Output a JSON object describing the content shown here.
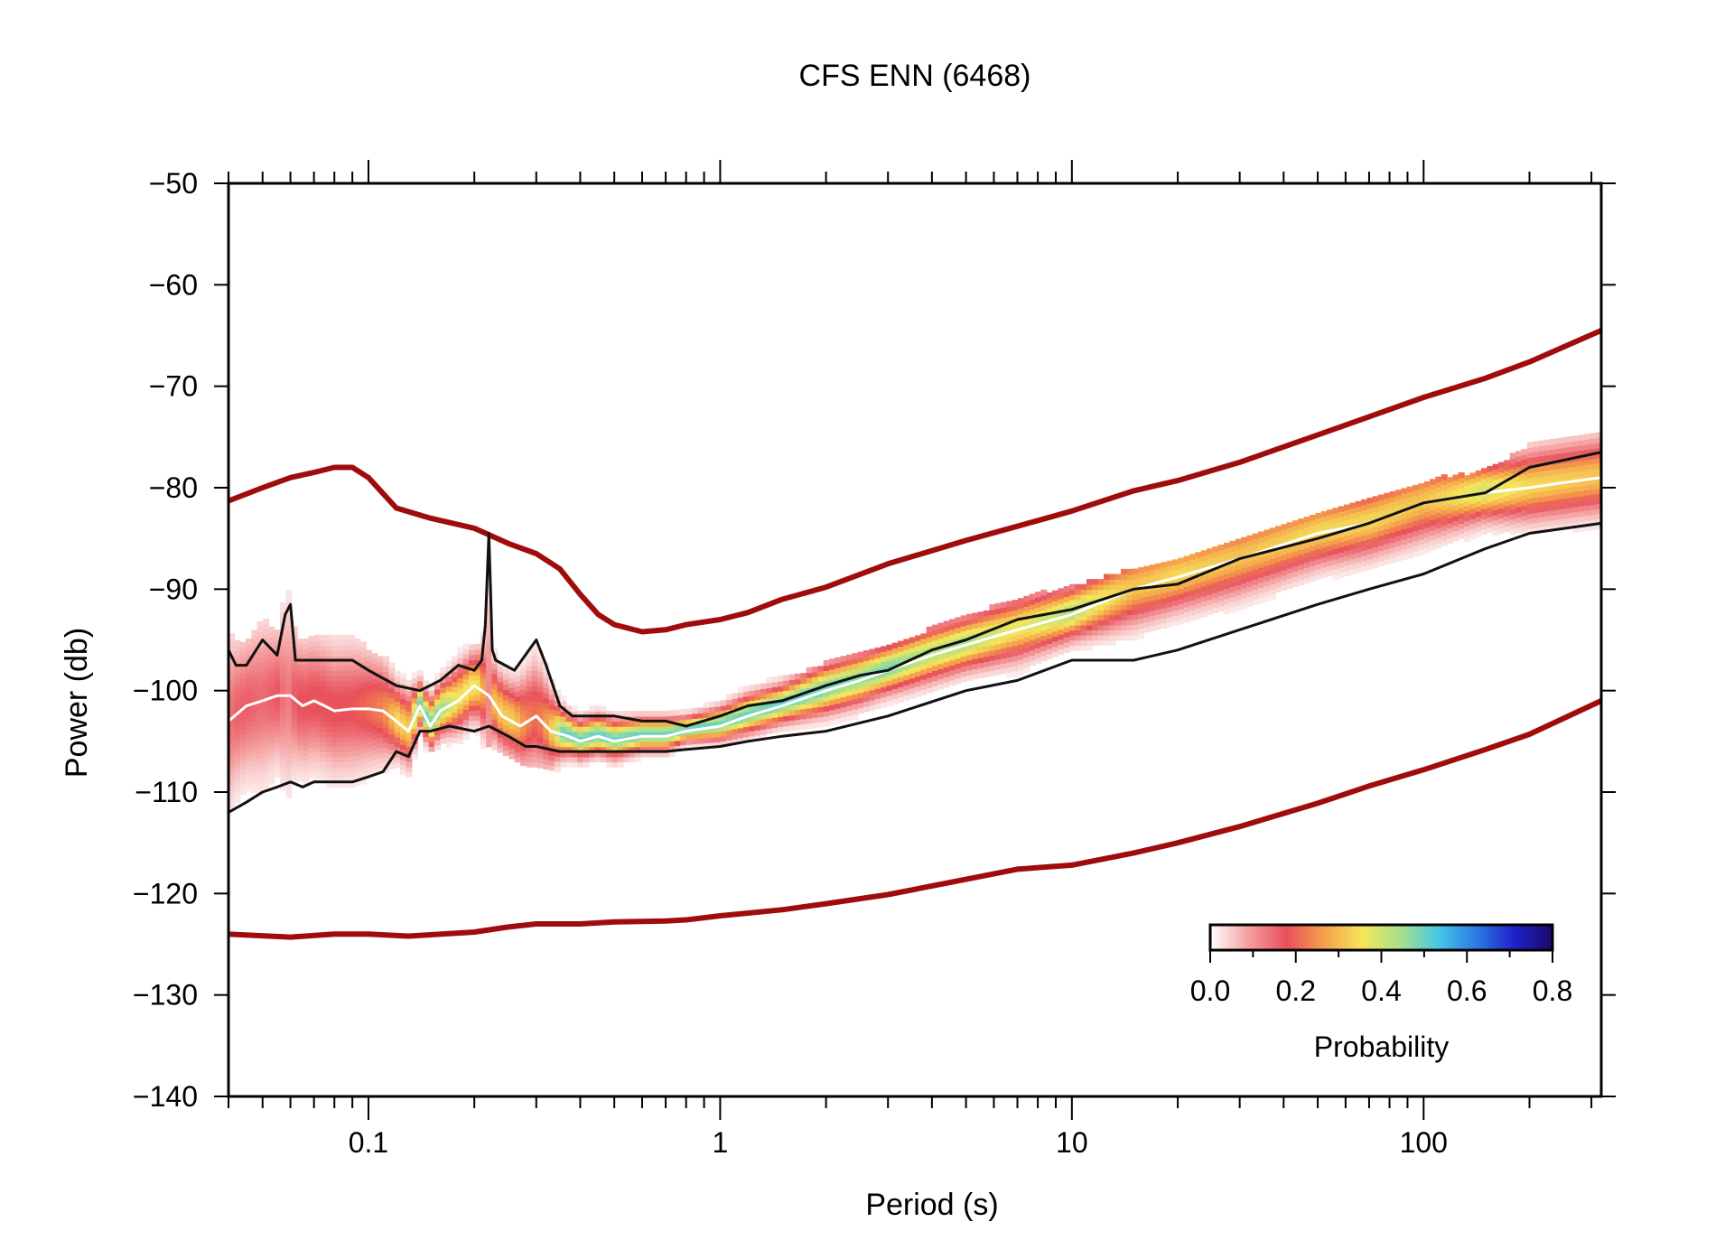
{
  "chart_data": {
    "type": "line",
    "title": "CFS ENN (6468)",
    "xlabel": "Period (s)",
    "ylabel": "Power (db)",
    "x_scale": "log",
    "xlim": [
      0.04,
      320
    ],
    "ylim": [
      -140,
      -50
    ],
    "x_tick_labels": [
      "0.1",
      "1",
      "10",
      "100"
    ],
    "x_tick_values": [
      0.1,
      1,
      10,
      100
    ],
    "y_tick_labels": [
      "−50",
      "−60",
      "−70",
      "−80",
      "−90",
      "−100",
      "−110",
      "−120",
      "−130",
      "−140"
    ],
    "y_tick_values": [
      -50,
      -60,
      -70,
      -80,
      -90,
      -100,
      -110,
      -120,
      -130,
      -140
    ],
    "grid": false,
    "colorbar": {
      "label": "Probability",
      "tick_labels": [
        "0.0",
        "0.2",
        "0.4",
        "0.6",
        "0.8"
      ],
      "range": [
        0,
        0.8
      ],
      "placement": "bottom-right",
      "colors": [
        "#ffffff",
        "#f4a0a0",
        "#e8505a",
        "#f5a04a",
        "#f5e65a",
        "#a8e08c",
        "#46c8e6",
        "#2a7ae6",
        "#2020c8",
        "#1a0a6e"
      ]
    },
    "series": [
      {
        "role": "NHNM",
        "color": "#a00c0c",
        "x": [
          0.04,
          0.05,
          0.06,
          0.07,
          0.08,
          0.09,
          0.1,
          0.12,
          0.15,
          0.2,
          0.25,
          0.3,
          0.35,
          0.4,
          0.45,
          0.5,
          0.6,
          0.7,
          0.8,
          1,
          1.2,
          1.5,
          2,
          3,
          5,
          7,
          10,
          15,
          20,
          30,
          50,
          70,
          100,
          150,
          200,
          320
        ],
        "y": [
          -81.3,
          -80,
          -79,
          -78.5,
          -78,
          -78,
          -79,
          -82,
          -83,
          -84,
          -85.5,
          -86.5,
          -88,
          -90.5,
          -92.5,
          -93.5,
          -94.2,
          -94,
          -93.5,
          -93,
          -92.3,
          -91,
          -89.8,
          -87.5,
          -85.2,
          -83.8,
          -82.3,
          -80.3,
          -79.3,
          -77.5,
          -74.8,
          -73,
          -71.1,
          -69.2,
          -67.6,
          -64.5
        ]
      },
      {
        "role": "NLNM",
        "color": "#a00c0c",
        "x": [
          0.04,
          0.06,
          0.08,
          0.1,
          0.13,
          0.2,
          0.25,
          0.3,
          0.4,
          0.5,
          0.7,
          0.8,
          1,
          1.5,
          2,
          3,
          5,
          7,
          10,
          15,
          20,
          30,
          50,
          70,
          100,
          150,
          200,
          320
        ],
        "y": [
          -124,
          -124.3,
          -124,
          -124,
          -124.2,
          -123.8,
          -123.3,
          -123,
          -123,
          -122.8,
          -122.7,
          -122.6,
          -122.2,
          -121.6,
          -121,
          -120.1,
          -118.6,
          -117.6,
          -117.2,
          -116,
          -115,
          -113.4,
          -111.1,
          -109.4,
          -107.8,
          -105.8,
          -104.3,
          -101
        ]
      },
      {
        "role": "mode",
        "color": "#ffffff",
        "x": [
          0.04,
          0.045,
          0.05,
          0.055,
          0.06,
          0.065,
          0.07,
          0.075,
          0.08,
          0.09,
          0.1,
          0.11,
          0.12,
          0.13,
          0.14,
          0.15,
          0.16,
          0.18,
          0.2,
          0.22,
          0.24,
          0.27,
          0.3,
          0.33,
          0.37,
          0.4,
          0.45,
          0.5,
          0.6,
          0.7,
          0.8,
          1,
          1.2,
          1.5,
          2,
          2.5,
          3,
          4,
          5,
          7,
          10,
          15,
          20,
          30,
          50,
          70,
          100,
          150,
          200,
          250,
          320
        ],
        "y": [
          -103,
          -101.5,
          -101,
          -100.5,
          -100.5,
          -101.5,
          -101,
          -101.5,
          -102,
          -101.8,
          -101.8,
          -102,
          -103,
          -104,
          -101.5,
          -103.5,
          -102,
          -101,
          -99.5,
          -100.5,
          -102.5,
          -103.5,
          -102.5,
          -104,
          -104.5,
          -105,
          -104.5,
          -105,
          -104.5,
          -104.5,
          -104,
          -103.5,
          -102.5,
          -101.5,
          -100,
          -99,
          -98,
          -96.5,
          -95.5,
          -94,
          -92.5,
          -90,
          -88.8,
          -87,
          -84.5,
          -83.5,
          -81.5,
          -80.5,
          -80,
          -79.5,
          -79
        ]
      },
      {
        "role": "upper-percentile",
        "color": "#111111",
        "x": [
          0.04,
          0.042,
          0.045,
          0.05,
          0.055,
          0.058,
          0.06,
          0.062,
          0.065,
          0.07,
          0.08,
          0.09,
          0.1,
          0.12,
          0.14,
          0.16,
          0.18,
          0.2,
          0.21,
          0.215,
          0.22,
          0.225,
          0.23,
          0.26,
          0.3,
          0.32,
          0.35,
          0.38,
          0.42,
          0.5,
          0.6,
          0.7,
          0.8,
          1,
          1.2,
          1.5,
          2,
          2.5,
          3,
          4,
          5,
          7,
          10,
          15,
          20,
          30,
          50,
          70,
          100,
          150,
          200,
          320
        ],
        "y": [
          -96,
          -97.5,
          -97.5,
          -95,
          -96.5,
          -92.5,
          -91.5,
          -97,
          -97,
          -97,
          -97,
          -97,
          -98,
          -99.5,
          -100,
          -99,
          -97.5,
          -98,
          -97,
          -93.5,
          -84.5,
          -96,
          -97,
          -98,
          -95,
          -97.5,
          -101.5,
          -102.5,
          -102.5,
          -102.5,
          -103,
          -103,
          -103.5,
          -102.5,
          -101.5,
          -101,
          -99.5,
          -98.5,
          -98,
          -96,
          -95,
          -93,
          -92,
          -90,
          -89.5,
          -87,
          -85,
          -83.5,
          -81.5,
          -80.5,
          -78,
          -76.5
        ]
      },
      {
        "role": "lower-percentile",
        "color": "#111111",
        "x": [
          0.04,
          0.045,
          0.05,
          0.055,
          0.06,
          0.065,
          0.07,
          0.08,
          0.09,
          0.1,
          0.11,
          0.12,
          0.13,
          0.14,
          0.15,
          0.17,
          0.2,
          0.22,
          0.25,
          0.28,
          0.3,
          0.35,
          0.4,
          0.42,
          0.5,
          0.6,
          0.7,
          0.8,
          1,
          1.2,
          1.5,
          2,
          3,
          5,
          7,
          10,
          15,
          20,
          30,
          50,
          70,
          100,
          150,
          200,
          320
        ],
        "y": [
          -112,
          -111,
          -110,
          -109.5,
          -109,
          -109.5,
          -109,
          -109,
          -109,
          -108.5,
          -108,
          -106,
          -106.5,
          -104,
          -104,
          -103.5,
          -104,
          -103.5,
          -104.5,
          -105.5,
          -105.5,
          -106,
          -106,
          -106,
          -106,
          -106,
          -106,
          -105.8,
          -105.5,
          -105,
          -104.5,
          -104,
          -102.5,
          -100,
          -99,
          -97,
          -97,
          -96,
          -94,
          -91.5,
          -90,
          -88.5,
          -86,
          -84.5,
          -83.5
        ]
      }
    ]
  }
}
